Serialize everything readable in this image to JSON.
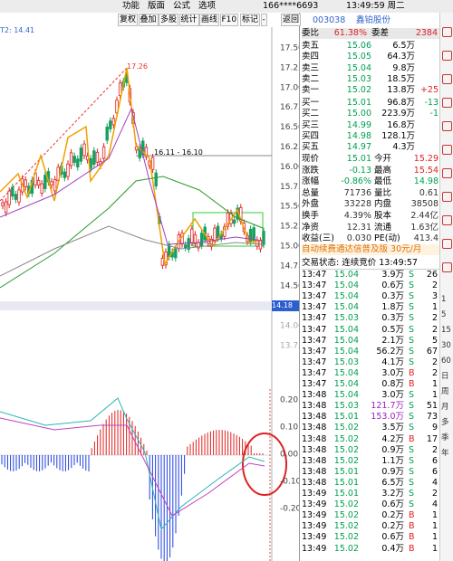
{
  "menu": {
    "items": [
      "功能",
      "版面",
      "公式",
      "选项"
    ],
    "account": "166****6693",
    "clock": "13:49:59 周二"
  },
  "toolbar": [
    "复权",
    "叠加",
    "多股",
    "统计",
    "画线",
    "F10",
    "标记",
    "-",
    "返回"
  ],
  "chart": {
    "indicator": "T2: 14.41",
    "peak_label": "17.26",
    "range_label": "16.11 - 16.10",
    "cursor_price": "14.18",
    "price_ticks": [
      "17.50",
      "17.25",
      "17.00",
      "16.75",
      "16.50",
      "16.25",
      "16.00",
      "15.75",
      "15.50",
      "15.25",
      "15.00",
      "14.75",
      "14.50"
    ],
    "lower_ticks": [
      "14.25",
      "14.00",
      "13.75"
    ],
    "macd_ticks": [
      "0.20",
      "0.10",
      "0.00",
      "-0.10",
      "-0.20"
    ]
  },
  "quote": {
    "code": "003038",
    "name": "鑫铂股份",
    "commission": {
      "ratio_label": "委比",
      "ratio": "61.38%",
      "diff_label": "委差",
      "diff": "2384"
    },
    "asks": [
      [
        "卖五",
        "15.06",
        "6.5万",
        ""
      ],
      [
        "卖四",
        "15.05",
        "64.3万",
        ""
      ],
      [
        "卖三",
        "15.04",
        "9.8万",
        ""
      ],
      [
        "卖二",
        "15.03",
        "18.5万",
        ""
      ],
      [
        "卖一",
        "15.02",
        "13.8万",
        "+25"
      ]
    ],
    "bids": [
      [
        "买一",
        "15.01",
        "96.8万",
        "-13"
      ],
      [
        "买二",
        "15.00",
        "223.9万",
        "-1"
      ],
      [
        "买三",
        "14.99",
        "16.8万",
        ""
      ],
      [
        "买四",
        "14.98",
        "128.1万",
        ""
      ],
      [
        "买五",
        "14.97",
        "4.3万",
        ""
      ]
    ],
    "stats": [
      [
        "现价",
        "15.01",
        "今开",
        "15.29"
      ],
      [
        "涨跌",
        "-0.13",
        "最高",
        "15.54"
      ],
      [
        "涨幅",
        "-0.86%",
        "最低",
        "14.98"
      ],
      [
        "总量",
        "71736",
        "量比",
        "0.61"
      ],
      [
        "外盘",
        "33228",
        "内盘",
        "38508"
      ]
    ],
    "finance": [
      [
        "换手",
        "4.39%",
        "股本",
        "2.44亿"
      ],
      [
        "净资",
        "12.31",
        "流通",
        "1.63亿"
      ],
      [
        "收益(三)",
        "0.030",
        "PE(动)",
        "413.4"
      ]
    ],
    "promo": "自动续费通达信普及版 30元/月",
    "status": "交易状态: 连续竞价 13:49:57",
    "trades": [
      [
        "13:47",
        "15.04",
        "3.9万",
        "S",
        "26"
      ],
      [
        "13:47",
        "15.04",
        "0.6万",
        "S",
        "2"
      ],
      [
        "13:47",
        "15.04",
        "0.3万",
        "S",
        "3"
      ],
      [
        "13:47",
        "15.04",
        "1.8万",
        "S",
        "1"
      ],
      [
        "13:47",
        "15.03",
        "0.3万",
        "S",
        "2"
      ],
      [
        "13:47",
        "15.04",
        "0.5万",
        "S",
        "2"
      ],
      [
        "13:47",
        "15.04",
        "2.1万",
        "S",
        "5"
      ],
      [
        "13:47",
        "15.04",
        "56.2万",
        "S",
        "67"
      ],
      [
        "13:47",
        "15.03",
        "4.1万",
        "S",
        "2"
      ],
      [
        "13:47",
        "15.04",
        "3.0万",
        "B",
        "2"
      ],
      [
        "13:47",
        "15.04",
        "0.8万",
        "B",
        "1"
      ],
      [
        "13:48",
        "15.04",
        "3.0万",
        "S",
        "1"
      ],
      [
        "13:48",
        "15.03",
        "121.7万",
        "S",
        "51"
      ],
      [
        "13:48",
        "15.01",
        "153.0万",
        "S",
        "73"
      ],
      [
        "13:48",
        "15.02",
        "3.5万",
        "S",
        "9"
      ],
      [
        "13:48",
        "15.02",
        "4.2万",
        "B",
        "17"
      ],
      [
        "13:48",
        "15.02",
        "0.9万",
        "S",
        "2"
      ],
      [
        "13:48",
        "15.02",
        "1.1万",
        "S",
        "6"
      ],
      [
        "13:48",
        "15.01",
        "0.9万",
        "S",
        "6"
      ],
      [
        "13:48",
        "15.01",
        "6.5万",
        "S",
        "4"
      ],
      [
        "13:49",
        "15.01",
        "3.2万",
        "S",
        "2"
      ],
      [
        "13:49",
        "15.02",
        "0.6万",
        "S",
        "4"
      ],
      [
        "13:49",
        "15.02",
        "0.2万",
        "B",
        "1"
      ],
      [
        "13:49",
        "15.02",
        "0.2万",
        "B",
        "1"
      ],
      [
        "13:49",
        "15.02",
        "0.6万",
        "B",
        "1"
      ],
      [
        "13:49",
        "15.02",
        "0.4万",
        "B",
        "1"
      ]
    ]
  },
  "sidebar": [
    "1",
    "5",
    "15",
    "30",
    "60",
    "日",
    "周",
    "月",
    "多",
    "季",
    "年"
  ]
}
